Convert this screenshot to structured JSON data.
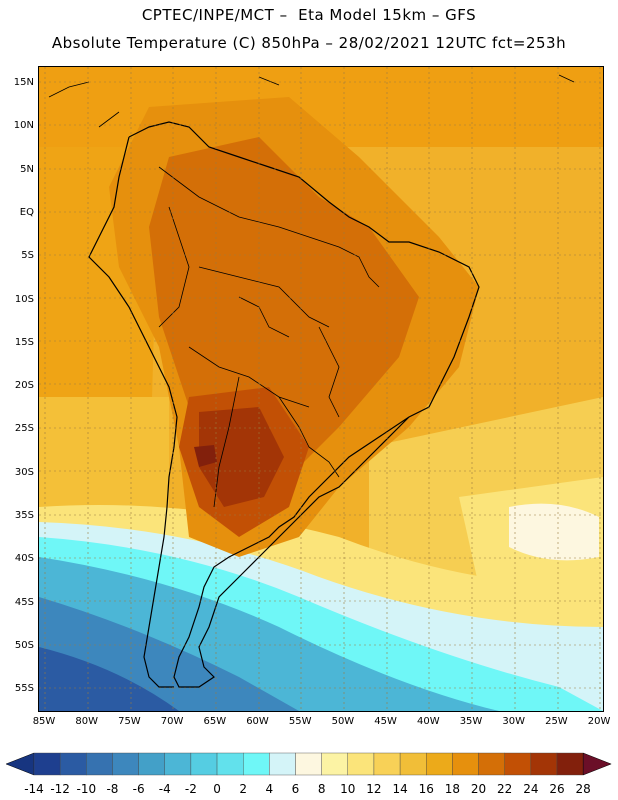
{
  "header": {
    "line1": "CPTEC/INPE/MCT –  Eta Model 15km – GFS",
    "line2": "Absolute Temperature (C) 850hPa – 28/02/2021 12UTC fct=253h"
  },
  "map": {
    "lat_labels": [
      "15N",
      "10N",
      "5N",
      "EQ",
      "5S",
      "10S",
      "15S",
      "20S",
      "25S",
      "30S",
      "35S",
      "40S",
      "45S",
      "50S",
      "55S"
    ],
    "lon_labels": [
      "85W",
      "80W",
      "75W",
      "70W",
      "65W",
      "60W",
      "55W",
      "50W",
      "45W",
      "40W",
      "35W",
      "30W",
      "25W",
      "20W"
    ]
  },
  "colorbar": {
    "labels": [
      "-14",
      "-12",
      "-10",
      "-8",
      "-6",
      "-4",
      "-2",
      "0",
      "2",
      "4",
      "6",
      "8",
      "10",
      "12",
      "14",
      "16",
      "18",
      "20",
      "22",
      "24",
      "26",
      "28"
    ],
    "colors": [
      "#1e3f8f",
      "#2b5ba3",
      "#3672b0",
      "#3d87bd",
      "#43a0c8",
      "#4cb6d6",
      "#55cde2",
      "#62e1ec",
      "#6ff7f7",
      "#d4f4f8",
      "#fdf7e0",
      "#fcf3a4",
      "#fbe47a",
      "#f8d157",
      "#f1be38",
      "#ecaa1a",
      "#e6900d",
      "#d46f07",
      "#c25005",
      "#a33506",
      "#82200c"
    ],
    "under_color": "#173580",
    "over_color": "#6b0f28"
  }
}
